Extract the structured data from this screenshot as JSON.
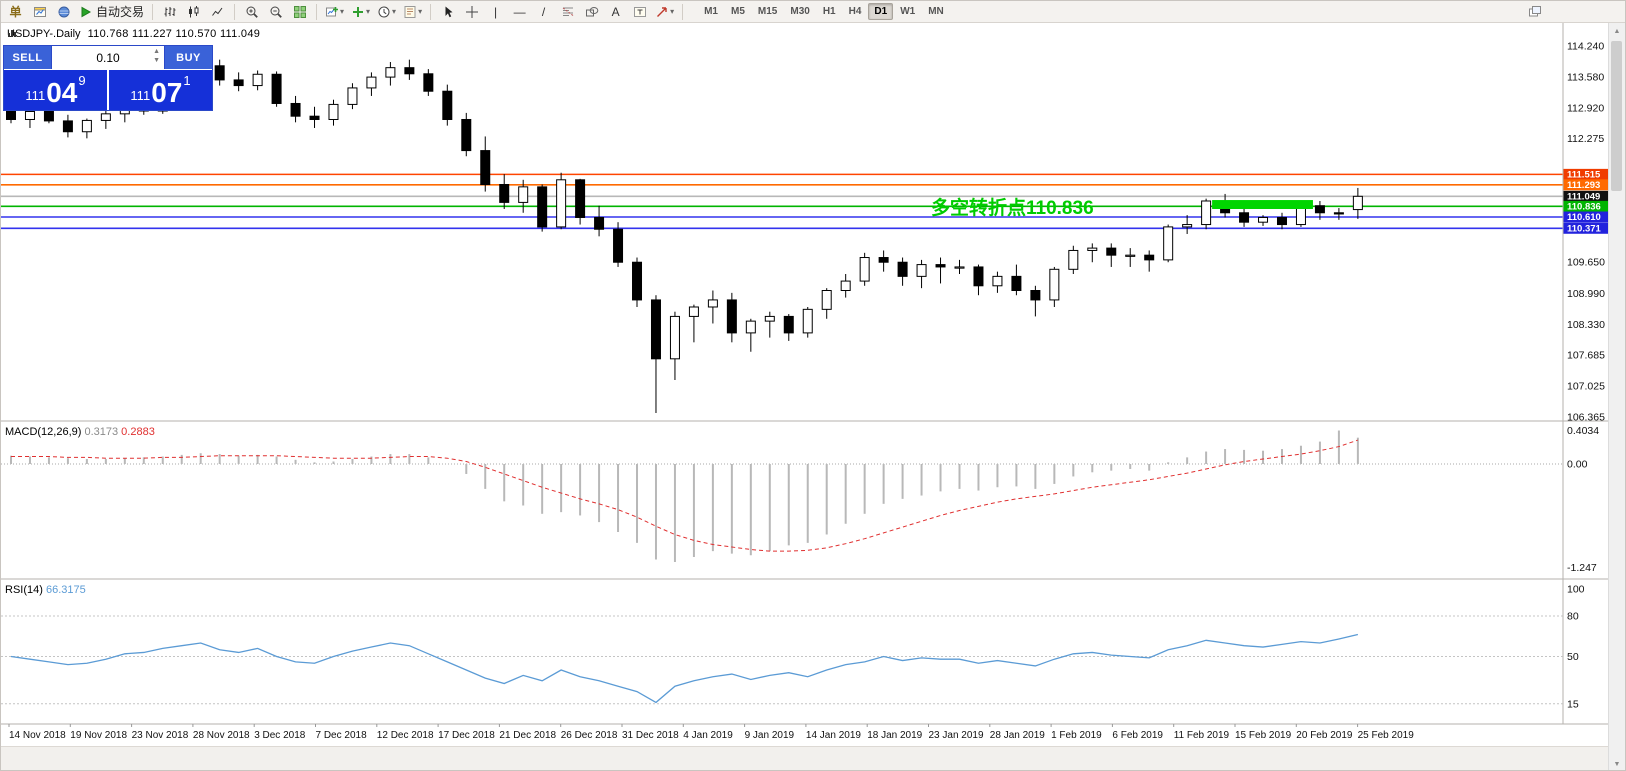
{
  "colors": {
    "trade_buttons": "#3a62d8",
    "trade_price_bg": "#1530d8",
    "bull_green": "#00cc00",
    "level_orange": "#ff4500",
    "level_blue": "#3333ee",
    "macd_bar": "#b8b8b8",
    "macd_signal": "#e03030",
    "rsi_line": "#5b9bd5"
  },
  "toolbar": {
    "items": [
      {
        "type": "glyph",
        "name": "new-order",
        "glyph": "单",
        "color": "#8a6d1a"
      },
      {
        "type": "icon",
        "name": "chart-window",
        "icon": "chartwin"
      },
      {
        "type": "icon",
        "name": "navigator",
        "icon": "navigator"
      },
      {
        "type": "auto",
        "name": "auto-trading",
        "icon": "play",
        "label": "自动交易"
      },
      {
        "type": "sep"
      },
      {
        "type": "icon",
        "name": "bar-chart-mode",
        "icon": "bars"
      },
      {
        "type": "icon",
        "name": "candlestick-mode",
        "icon": "candles"
      },
      {
        "type": "icon",
        "name": "line-chart-mode",
        "icon": "linechart"
      },
      {
        "type": "sep"
      },
      {
        "type": "icon",
        "name": "zoom-in",
        "icon": "zoomin"
      },
      {
        "type": "icon",
        "name": "zoom-out",
        "icon": "zoomout"
      },
      {
        "type": "icon",
        "name": "tile-windows",
        "icon": "tile"
      },
      {
        "type": "sep"
      },
      {
        "type": "icon",
        "name": "new-chart",
        "icon": "chartplus",
        "dropdown": true
      },
      {
        "type": "icon",
        "name": "indicators",
        "icon": "plus",
        "dropdown": true
      },
      {
        "type": "icon",
        "name": "periods",
        "icon": "clock",
        "dropdown": true
      },
      {
        "type": "icon",
        "name": "templates",
        "icon": "template",
        "dropdown": true
      },
      {
        "type": "sep"
      },
      {
        "type": "icon",
        "name": "cursor",
        "icon": "cursor"
      },
      {
        "type": "icon",
        "name": "crosshair",
        "icon": "crosshair"
      },
      {
        "type": "glyph",
        "name": "vertical-line",
        "glyph": "|",
        "color": "#333"
      },
      {
        "type": "glyph",
        "name": "horizontal-line",
        "glyph": "—",
        "color": "#333"
      },
      {
        "type": "glyph",
        "name": "trendline",
        "glyph": "/",
        "color": "#333"
      },
      {
        "type": "icon",
        "name": "fibonacci",
        "icon": "fibo"
      },
      {
        "type": "icon",
        "name": "shapes",
        "icon": "shapes"
      },
      {
        "type": "glyph",
        "name": "text",
        "glyph": "A",
        "color": "#333"
      },
      {
        "type": "icon",
        "name": "text-label",
        "icon": "textlabel"
      },
      {
        "type": "icon",
        "name": "arrows",
        "icon": "arrowtool",
        "dropdown": true
      },
      {
        "type": "sep"
      }
    ],
    "timeframes": [
      "M1",
      "M5",
      "M15",
      "M30",
      "H1",
      "H4",
      "D1",
      "W1",
      "MN"
    ],
    "active_timeframe": "D1"
  },
  "chart": {
    "title": "USDJPY-.Daily",
    "ohlc": "110.768 111.227 110.570 111.049",
    "price_axis_labels": [
      "114.240",
      "113.580",
      "112.920",
      "112.275",
      "109.650",
      "108.990",
      "108.330",
      "107.685",
      "107.025",
      "106.365"
    ],
    "levels": [
      {
        "price": 111.515,
        "label": "111.515",
        "line_color": "#ff4500",
        "tag_bg": "#f03c00"
      },
      {
        "price": 111.293,
        "label": "111.293",
        "line_color": "#ff6a00",
        "tag_bg": "#ff6a00"
      },
      {
        "price": 111.049,
        "label": "111.049",
        "line_color": "#b8b8b8",
        "tag_bg": "#111111"
      },
      {
        "price": 110.836,
        "label": "110.836",
        "line_color": "#00b400",
        "tag_bg": "#00b400"
      },
      {
        "price": 110.61,
        "label": "110.610",
        "line_color": "#3333ee",
        "tag_bg": "#2222dd"
      },
      {
        "price": 110.371,
        "label": "110.371",
        "line_color": "#3333ee",
        "tag_bg": "#2222dd"
      }
    ],
    "annotation": {
      "text": "多空转折点110.836",
      "color": "#00cc00"
    },
    "highlight_box": {
      "start_index": 63,
      "end_index": 68,
      "price_top": 110.97,
      "price_bottom": 110.78,
      "color": "#00d500"
    }
  },
  "trade_panel": {
    "sell_label": "SELL",
    "buy_label": "BUY",
    "lot_size": "0.10",
    "bid": {
      "big": "111",
      "pips": "04",
      "pt": "9"
    },
    "ask": {
      "big": "111",
      "pips": "07",
      "pt": "1"
    }
  },
  "macd": {
    "label": "MACD(12,26,9)",
    "value_main": "0.3173",
    "value_signal": "0.2883",
    "axis": [
      "0.4034",
      "0.00",
      "-1.247"
    ]
  },
  "rsi": {
    "label": "RSI(14)",
    "value": "66.3175",
    "axis": [
      "100",
      "80",
      "50",
      "15"
    ],
    "levels": [
      80,
      50,
      15
    ]
  },
  "date_axis": [
    "14 Nov 2018",
    "19 Nov 2018",
    "23 Nov 2018",
    "28 Nov 2018",
    "3 Dec 2018",
    "7 Dec 2018",
    "12 Dec 2018",
    "17 Dec 2018",
    "21 Dec 2018",
    "26 Dec 2018",
    "31 Dec 2018",
    "4 Jan 2019",
    "9 Jan 2019",
    "14 Jan 2019",
    "18 Jan 2019",
    "23 Jan 2019",
    "28 Jan 2019",
    "1 Feb 2019",
    "6 Feb 2019",
    "11 Feb 2019",
    "15 Feb 2019",
    "20 Feb 2019",
    "25 Feb 2019"
  ],
  "chart_data": {
    "type": "candlestick",
    "symbol": "USDJPY",
    "timeframe": "Daily",
    "y_range": [
      106.365,
      114.24
    ],
    "last_ohlc": {
      "open": 110.768,
      "high": 111.227,
      "low": 110.57,
      "close": 111.049
    },
    "candles": [
      [
        113.0,
        113.12,
        112.6,
        112.68
      ],
      [
        112.68,
        112.9,
        112.5,
        112.85
      ],
      [
        112.85,
        112.98,
        112.6,
        112.65
      ],
      [
        112.65,
        112.78,
        112.3,
        112.42
      ],
      [
        112.42,
        112.7,
        112.28,
        112.66
      ],
      [
        112.66,
        112.88,
        112.48,
        112.8
      ],
      [
        112.8,
        113.05,
        112.62,
        112.98
      ],
      [
        112.98,
        113.12,
        112.78,
        112.86
      ],
      [
        112.86,
        113.35,
        112.8,
        113.28
      ],
      [
        113.28,
        113.62,
        113.1,
        113.55
      ],
      [
        113.55,
        113.9,
        113.34,
        113.82
      ],
      [
        113.82,
        113.95,
        113.4,
        113.52
      ],
      [
        113.52,
        113.68,
        113.28,
        113.4
      ],
      [
        113.4,
        113.72,
        113.3,
        113.64
      ],
      [
        113.64,
        113.7,
        112.95,
        113.02
      ],
      [
        113.02,
        113.18,
        112.62,
        112.75
      ],
      [
        112.75,
        112.95,
        112.5,
        112.68
      ],
      [
        112.68,
        113.1,
        112.55,
        113.0
      ],
      [
        113.0,
        113.45,
        112.9,
        113.35
      ],
      [
        113.35,
        113.68,
        113.18,
        113.58
      ],
      [
        113.58,
        113.9,
        113.4,
        113.78
      ],
      [
        113.78,
        113.95,
        113.52,
        113.65
      ],
      [
        113.65,
        113.75,
        113.18,
        113.28
      ],
      [
        113.28,
        113.42,
        112.55,
        112.68
      ],
      [
        112.68,
        112.82,
        111.9,
        112.02
      ],
      [
        112.02,
        112.32,
        111.15,
        111.3
      ],
      [
        111.3,
        111.52,
        110.78,
        110.92
      ],
      [
        110.92,
        111.4,
        110.7,
        111.25
      ],
      [
        111.25,
        111.3,
        110.3,
        110.4
      ],
      [
        110.4,
        111.55,
        110.35,
        111.4
      ],
      [
        111.4,
        111.42,
        110.45,
        110.6
      ],
      [
        110.6,
        110.85,
        110.2,
        110.35
      ],
      [
        110.35,
        110.5,
        109.55,
        109.65
      ],
      [
        109.65,
        109.75,
        108.7,
        108.85
      ],
      [
        108.85,
        108.95,
        106.45,
        107.6
      ],
      [
        107.6,
        108.6,
        107.15,
        108.5
      ],
      [
        108.5,
        108.75,
        107.95,
        108.7
      ],
      [
        108.7,
        109.05,
        108.35,
        108.85
      ],
      [
        108.85,
        109.0,
        107.95,
        108.15
      ],
      [
        108.15,
        108.45,
        107.75,
        108.4
      ],
      [
        108.4,
        108.6,
        108.05,
        108.5
      ],
      [
        108.5,
        108.55,
        107.98,
        108.15
      ],
      [
        108.15,
        108.7,
        108.05,
        108.65
      ],
      [
        108.65,
        109.1,
        108.45,
        109.05
      ],
      [
        109.05,
        109.4,
        108.9,
        109.25
      ],
      [
        109.25,
        109.85,
        109.15,
        109.75
      ],
      [
        109.75,
        109.9,
        109.45,
        109.65
      ],
      [
        109.65,
        109.75,
        109.15,
        109.35
      ],
      [
        109.35,
        109.7,
        109.1,
        109.6
      ],
      [
        109.6,
        109.75,
        109.2,
        109.55
      ],
      [
        109.55,
        109.7,
        109.4,
        109.55
      ],
      [
        109.55,
        109.6,
        108.95,
        109.15
      ],
      [
        109.15,
        109.45,
        109.0,
        109.35
      ],
      [
        109.35,
        109.6,
        108.95,
        109.05
      ],
      [
        109.05,
        109.15,
        108.5,
        108.85
      ],
      [
        108.85,
        109.55,
        108.7,
        109.5
      ],
      [
        109.5,
        110.0,
        109.4,
        109.9
      ],
      [
        109.9,
        110.05,
        109.65,
        109.95
      ],
      [
        109.95,
        110.05,
        109.55,
        109.8
      ],
      [
        109.8,
        109.95,
        109.55,
        109.8
      ],
      [
        109.8,
        109.9,
        109.45,
        109.7
      ],
      [
        109.7,
        110.45,
        109.65,
        110.4
      ],
      [
        110.4,
        110.65,
        110.25,
        110.45
      ],
      [
        110.45,
        111.0,
        110.35,
        110.95
      ],
      [
        110.95,
        111.1,
        110.6,
        110.7
      ],
      [
        110.7,
        110.85,
        110.4,
        110.5
      ],
      [
        110.5,
        110.65,
        110.42,
        110.6
      ],
      [
        110.6,
        110.7,
        110.35,
        110.45
      ],
      [
        110.45,
        110.9,
        110.4,
        110.85
      ],
      [
        110.85,
        110.95,
        110.55,
        110.7
      ],
      [
        110.7,
        110.8,
        110.55,
        110.68
      ],
      [
        110.768,
        111.227,
        110.57,
        111.049
      ]
    ],
    "macd_histogram": [
      0.1,
      0.09,
      0.08,
      0.07,
      0.06,
      0.06,
      0.07,
      0.08,
      0.09,
      0.11,
      0.13,
      0.12,
      0.1,
      0.11,
      0.09,
      0.05,
      0.02,
      0.03,
      0.06,
      0.09,
      0.12,
      0.12,
      0.08,
      0.0,
      -0.12,
      -0.3,
      -0.45,
      -0.5,
      -0.6,
      -0.58,
      -0.62,
      -0.7,
      -0.82,
      -0.95,
      -1.15,
      -1.18,
      -1.12,
      -1.05,
      -1.08,
      -1.1,
      -1.05,
      -0.98,
      -0.95,
      -0.85,
      -0.72,
      -0.6,
      -0.48,
      -0.42,
      -0.38,
      -0.33,
      -0.3,
      -0.32,
      -0.28,
      -0.27,
      -0.3,
      -0.24,
      -0.15,
      -0.1,
      -0.08,
      -0.06,
      -0.08,
      0.02,
      0.08,
      0.15,
      0.18,
      0.17,
      0.16,
      0.18,
      0.22,
      0.27,
      0.4034,
      0.3173
    ],
    "macd_signal": [
      0.09,
      0.09,
      0.09,
      0.08,
      0.08,
      0.07,
      0.07,
      0.07,
      0.08,
      0.08,
      0.09,
      0.1,
      0.1,
      0.1,
      0.1,
      0.09,
      0.08,
      0.07,
      0.07,
      0.07,
      0.08,
      0.09,
      0.09,
      0.07,
      0.03,
      -0.04,
      -0.12,
      -0.2,
      -0.28,
      -0.35,
      -0.42,
      -0.48,
      -0.55,
      -0.64,
      -0.75,
      -0.85,
      -0.92,
      -0.97,
      -1.0,
      -1.03,
      -1.05,
      -1.05,
      -1.04,
      -1.01,
      -0.96,
      -0.9,
      -0.83,
      -0.76,
      -0.69,
      -0.62,
      -0.56,
      -0.51,
      -0.46,
      -0.42,
      -0.39,
      -0.36,
      -0.32,
      -0.28,
      -0.25,
      -0.22,
      -0.19,
      -0.15,
      -0.11,
      -0.06,
      -0.01,
      0.03,
      0.06,
      0.09,
      0.12,
      0.16,
      0.21,
      0.2883
    ],
    "rsi": [
      50,
      48,
      46,
      44,
      45,
      48,
      52,
      53,
      56,
      58,
      60,
      55,
      53,
      56,
      50,
      46,
      45,
      50,
      54,
      57,
      60,
      58,
      52,
      46,
      40,
      34,
      30,
      36,
      32,
      40,
      35,
      32,
      28,
      24,
      16,
      28,
      32,
      35,
      37,
      33,
      36,
      38,
      35,
      40,
      44,
      46,
      50,
      47,
      49,
      48,
      48,
      45,
      47,
      45,
      43,
      48,
      52,
      53,
      51,
      50,
      49,
      55,
      58,
      62,
      60,
      58,
      57,
      59,
      61,
      60,
      63,
      66.3
    ]
  }
}
